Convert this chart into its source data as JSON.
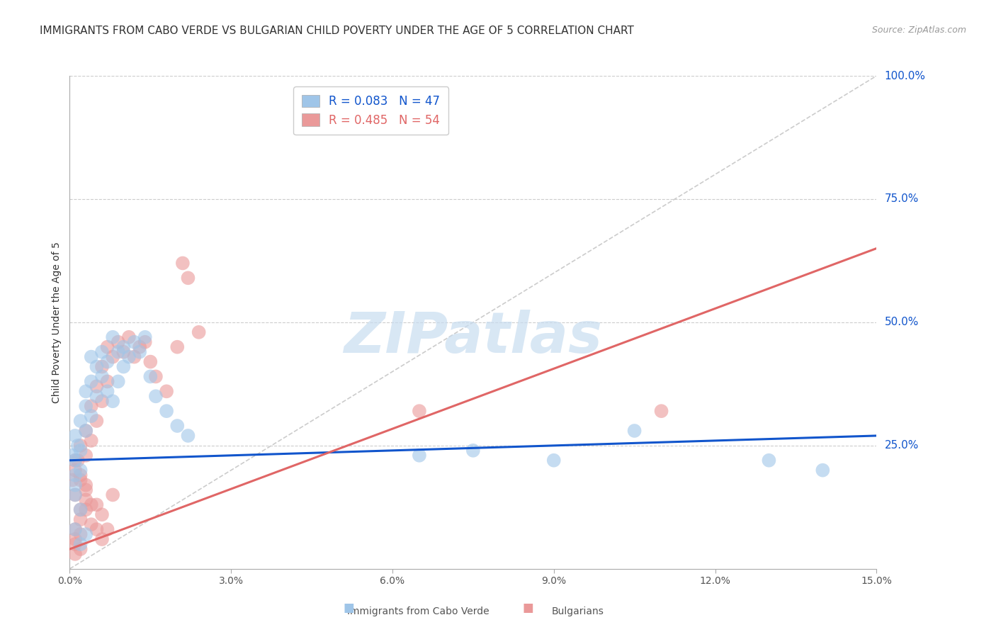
{
  "title": "IMMIGRANTS FROM CABO VERDE VS BULGARIAN CHILD POVERTY UNDER THE AGE OF 5 CORRELATION CHART",
  "source": "Source: ZipAtlas.com",
  "ylabel": "Child Poverty Under the Age of 5",
  "xlim": [
    0.0,
    0.15
  ],
  "ylim": [
    0.0,
    1.0
  ],
  "xtick_labels": [
    "0.0%",
    "3.0%",
    "6.0%",
    "9.0%",
    "12.0%",
    "15.0%"
  ],
  "xtick_vals": [
    0.0,
    0.03,
    0.06,
    0.09,
    0.12,
    0.15
  ],
  "ytick_labels_right": [
    "100.0%",
    "75.0%",
    "50.0%",
    "25.0%"
  ],
  "ytick_vals_right": [
    1.0,
    0.75,
    0.5,
    0.25
  ],
  "blue_scatter_color": "#9fc5e8",
  "pink_scatter_color": "#ea9999",
  "blue_line_color": "#1155cc",
  "pink_line_color": "#e06666",
  "legend_blue_R": "0.083",
  "legend_blue_N": "47",
  "legend_pink_R": "0.485",
  "legend_pink_N": "54",
  "title_fontsize": 11,
  "source_fontsize": 9,
  "axis_label_fontsize": 10,
  "tick_fontsize": 10,
  "background_color": "#ffffff",
  "grid_color": "#cccccc",
  "watermark_text": "ZIPatlas",
  "watermark_color": "#c8ddf0",
  "blue_regression": [
    0.22,
    0.27
  ],
  "pink_regression": [
    0.04,
    0.65
  ],
  "cabo_verde_x": [
    0.0005,
    0.001,
    0.001,
    0.0015,
    0.002,
    0.002,
    0.002,
    0.003,
    0.003,
    0.003,
    0.004,
    0.004,
    0.004,
    0.005,
    0.005,
    0.006,
    0.006,
    0.007,
    0.007,
    0.008,
    0.008,
    0.009,
    0.009,
    0.01,
    0.01,
    0.011,
    0.012,
    0.013,
    0.014,
    0.015,
    0.016,
    0.018,
    0.02,
    0.022,
    0.001,
    0.002,
    0.001,
    0.001,
    0.001,
    0.002,
    0.003,
    0.065,
    0.075,
    0.09,
    0.105,
    0.13,
    0.14
  ],
  "cabo_verde_y": [
    0.23,
    0.27,
    0.22,
    0.25,
    0.24,
    0.3,
    0.2,
    0.33,
    0.28,
    0.36,
    0.31,
    0.38,
    0.43,
    0.35,
    0.41,
    0.39,
    0.44,
    0.36,
    0.42,
    0.34,
    0.47,
    0.38,
    0.44,
    0.41,
    0.45,
    0.43,
    0.46,
    0.44,
    0.47,
    0.39,
    0.35,
    0.32,
    0.29,
    0.27,
    0.17,
    0.12,
    0.08,
    0.15,
    0.19,
    0.05,
    0.07,
    0.23,
    0.24,
    0.22,
    0.28,
    0.22,
    0.2
  ],
  "bulgarian_x": [
    0.0005,
    0.001,
    0.001,
    0.0015,
    0.002,
    0.002,
    0.002,
    0.003,
    0.003,
    0.003,
    0.004,
    0.004,
    0.005,
    0.005,
    0.006,
    0.006,
    0.007,
    0.007,
    0.008,
    0.009,
    0.01,
    0.011,
    0.012,
    0.013,
    0.014,
    0.015,
    0.016,
    0.018,
    0.02,
    0.021,
    0.022,
    0.024,
    0.001,
    0.001,
    0.002,
    0.002,
    0.003,
    0.003,
    0.004,
    0.005,
    0.006,
    0.007,
    0.008,
    0.001,
    0.002,
    0.001,
    0.001,
    0.002,
    0.003,
    0.004,
    0.005,
    0.006,
    0.065,
    0.11
  ],
  "bulgarian_y": [
    0.18,
    0.2,
    0.15,
    0.22,
    0.19,
    0.25,
    0.12,
    0.23,
    0.17,
    0.28,
    0.26,
    0.33,
    0.3,
    0.37,
    0.34,
    0.41,
    0.38,
    0.45,
    0.43,
    0.46,
    0.44,
    0.47,
    0.43,
    0.45,
    0.46,
    0.42,
    0.39,
    0.36,
    0.45,
    0.62,
    0.59,
    0.48,
    0.08,
    0.05,
    0.1,
    0.07,
    0.12,
    0.14,
    0.09,
    0.13,
    0.11,
    0.08,
    0.15,
    0.22,
    0.18,
    0.03,
    0.06,
    0.04,
    0.16,
    0.13,
    0.08,
    0.06,
    0.32,
    0.32
  ]
}
